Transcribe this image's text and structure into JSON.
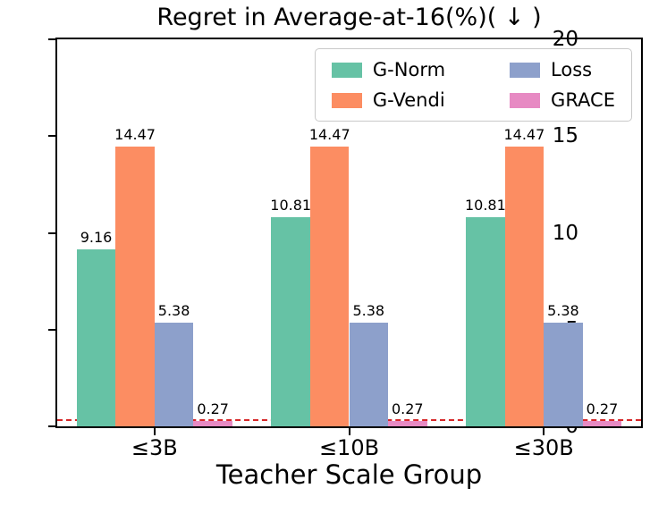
{
  "chart_data": {
    "type": "bar",
    "title": "Regret in Average-at-16(%)( ↓ )",
    "xlabel": "Teacher Scale Group",
    "ylabel": "",
    "categories": [
      "≤3B",
      "≤10B",
      "≤30B"
    ],
    "series": [
      {
        "name": "G-Norm",
        "color": "#66c2a5",
        "values": [
          9.16,
          10.81,
          10.81
        ]
      },
      {
        "name": "G-Vendi",
        "color": "#fc8d62",
        "values": [
          14.47,
          14.47,
          14.47
        ]
      },
      {
        "name": "Loss",
        "color": "#8da0cb",
        "values": [
          5.38,
          5.38,
          5.38
        ]
      },
      {
        "name": "GRACE",
        "color": "#e78ac3",
        "values": [
          0.27,
          0.27,
          0.27
        ]
      }
    ],
    "ylim": [
      0,
      20
    ],
    "yticks": [
      0,
      5,
      10,
      15,
      20
    ],
    "grid": false,
    "legend_position": "upper right (inside), 2 columns",
    "bar_value_labels": true,
    "reference_line": {
      "value": 0.27,
      "color": "#d62728",
      "style": "dashed"
    }
  }
}
